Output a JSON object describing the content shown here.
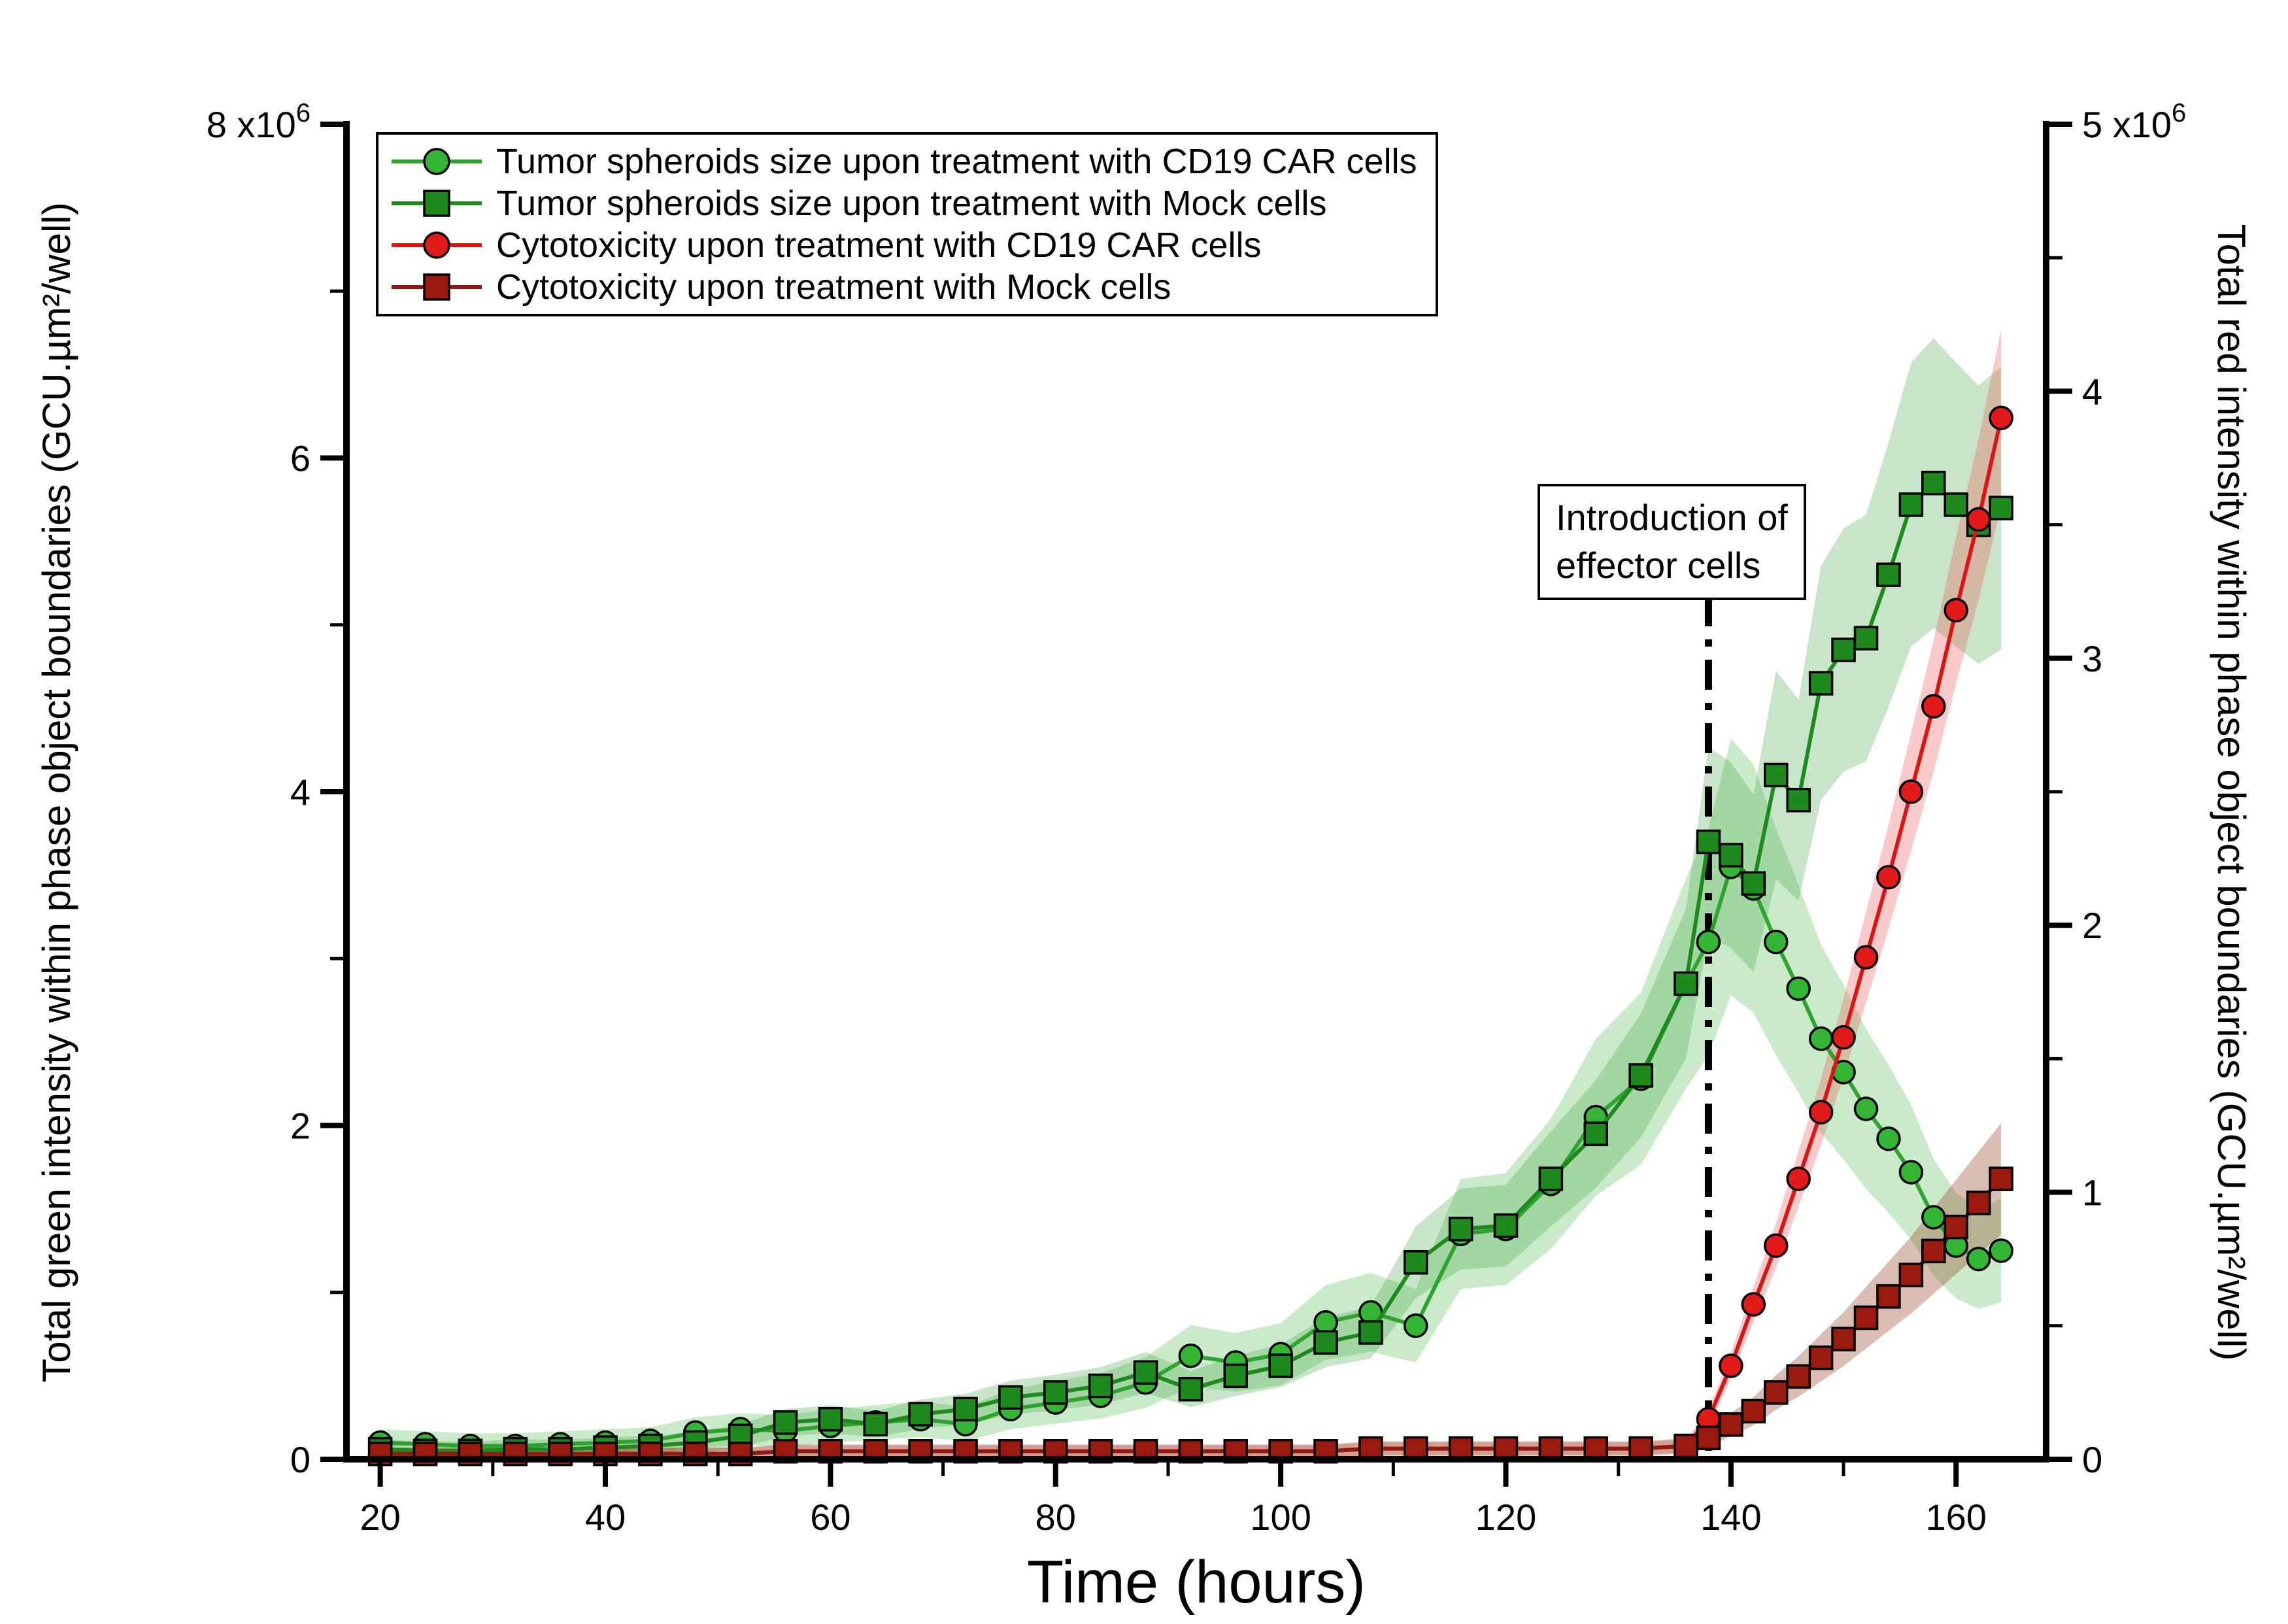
{
  "chart_data": {
    "type": "line",
    "title": "",
    "xlabel": "Time (hours)",
    "ylabel_left": "Total green intensity within phase object boundaries (GCU.µm²/well)",
    "ylabel_right": "Total red intensity within phase object boundaries (GCU.µm²/well)",
    "unit_note": "y values expressed in units of 10^6 GCU.µm²/well",
    "power_prefix": "x10",
    "power_exp": "6",
    "xlim": [
      17,
      168
    ],
    "ylim_left": [
      0,
      8
    ],
    "ylim_right": [
      0,
      5
    ],
    "x_ticks": [
      20,
      40,
      60,
      80,
      100,
      120,
      140,
      160
    ],
    "x_minor_step": 10,
    "left_ticks": [
      0,
      2,
      4,
      6,
      8
    ],
    "left_minor_ticks": [
      1,
      3,
      5,
      7
    ],
    "right_ticks": [
      0,
      1,
      2,
      3,
      4,
      5
    ],
    "right_minor_ticks": [
      0.5,
      1.5,
      2.5,
      3.5,
      4.5
    ],
    "grid": false,
    "legend_position": "top-left",
    "annotation": {
      "line1": "Introduction of",
      "line2": "effector cells",
      "x_hours": 138
    },
    "series": [
      {
        "label": "Tumor spheroids size upon treatment with CD19 CAR cells",
        "axis": "left",
        "marker": "circle",
        "color": "#35b535",
        "line_color": "#2fa32f",
        "band_color": "rgba(80,190,80,0.30)",
        "band_rel": 0.2,
        "band_abs": 0.06,
        "points": [
          [
            20,
            0.1
          ],
          [
            24,
            0.09
          ],
          [
            28,
            0.08
          ],
          [
            32,
            0.08
          ],
          [
            36,
            0.09
          ],
          [
            40,
            0.1
          ],
          [
            44,
            0.11
          ],
          [
            48,
            0.16
          ],
          [
            52,
            0.18
          ],
          [
            56,
            0.17
          ],
          [
            60,
            0.2
          ],
          [
            64,
            0.22
          ],
          [
            68,
            0.24
          ],
          [
            72,
            0.21
          ],
          [
            76,
            0.3
          ],
          [
            80,
            0.34
          ],
          [
            84,
            0.38
          ],
          [
            88,
            0.46
          ],
          [
            92,
            0.62
          ],
          [
            96,
            0.58
          ],
          [
            100,
            0.63
          ],
          [
            104,
            0.82
          ],
          [
            108,
            0.88
          ],
          [
            112,
            0.8
          ],
          [
            116,
            1.35
          ],
          [
            120,
            1.38
          ],
          [
            124,
            1.65
          ],
          [
            128,
            2.05
          ],
          [
            132,
            2.28
          ],
          [
            136,
            2.85
          ],
          [
            138,
            3.1
          ],
          [
            140,
            3.55
          ],
          [
            142,
            3.42
          ],
          [
            144,
            3.1
          ],
          [
            146,
            2.82
          ],
          [
            148,
            2.52
          ],
          [
            150,
            2.32
          ],
          [
            152,
            2.1
          ],
          [
            154,
            1.92
          ],
          [
            156,
            1.72
          ],
          [
            158,
            1.45
          ],
          [
            160,
            1.28
          ],
          [
            162,
            1.2
          ],
          [
            164,
            1.25
          ]
        ]
      },
      {
        "label": "Tumor spheroids size upon treatment with Mock cells",
        "axis": "left",
        "marker": "square",
        "color": "#1e8a1e",
        "line_color": "#1e8a1e",
        "band_color": "rgba(60,160,60,0.28)",
        "band_rel": 0.14,
        "band_abs": 0.05,
        "points": [
          [
            20,
            0.06
          ],
          [
            24,
            0.05
          ],
          [
            28,
            0.05
          ],
          [
            32,
            0.06
          ],
          [
            36,
            0.06
          ],
          [
            40,
            0.07
          ],
          [
            44,
            0.08
          ],
          [
            48,
            0.1
          ],
          [
            52,
            0.14
          ],
          [
            56,
            0.22
          ],
          [
            60,
            0.24
          ],
          [
            64,
            0.21
          ],
          [
            68,
            0.27
          ],
          [
            72,
            0.3
          ],
          [
            76,
            0.37
          ],
          [
            80,
            0.4
          ],
          [
            84,
            0.44
          ],
          [
            88,
            0.52
          ],
          [
            92,
            0.42
          ],
          [
            96,
            0.5
          ],
          [
            100,
            0.56
          ],
          [
            104,
            0.7
          ],
          [
            108,
            0.76
          ],
          [
            112,
            1.18
          ],
          [
            116,
            1.38
          ],
          [
            120,
            1.4
          ],
          [
            124,
            1.68
          ],
          [
            128,
            1.95
          ],
          [
            132,
            2.3
          ],
          [
            136,
            2.85
          ],
          [
            138,
            3.7
          ],
          [
            140,
            3.62
          ],
          [
            142,
            3.45
          ],
          [
            144,
            4.1
          ],
          [
            146,
            3.95
          ],
          [
            148,
            4.65
          ],
          [
            150,
            4.85
          ],
          [
            152,
            4.92
          ],
          [
            154,
            5.3
          ],
          [
            156,
            5.72
          ],
          [
            158,
            5.85
          ],
          [
            160,
            5.72
          ],
          [
            162,
            5.6
          ],
          [
            164,
            5.7
          ]
        ]
      },
      {
        "label": "Cytotoxicity upon treatment with CD19 CAR cells",
        "axis": "right",
        "marker": "circle",
        "color": "#e31a1a",
        "line_color": "#d81616",
        "band_color": "rgba(240,80,80,0.30)",
        "band_rel": 0.08,
        "band_abs": 0.02,
        "points": [
          [
            20,
            0.02
          ],
          [
            24,
            0.02
          ],
          [
            28,
            0.02
          ],
          [
            32,
            0.02
          ],
          [
            36,
            0.02
          ],
          [
            40,
            0.02
          ],
          [
            44,
            0.02
          ],
          [
            48,
            0.02
          ],
          [
            52,
            0.02
          ],
          [
            56,
            0.03
          ],
          [
            60,
            0.03
          ],
          [
            64,
            0.03
          ],
          [
            68,
            0.03
          ],
          [
            72,
            0.03
          ],
          [
            76,
            0.03
          ],
          [
            80,
            0.03
          ],
          [
            84,
            0.03
          ],
          [
            88,
            0.03
          ],
          [
            92,
            0.03
          ],
          [
            96,
            0.03
          ],
          [
            100,
            0.03
          ],
          [
            104,
            0.03
          ],
          [
            108,
            0.04
          ],
          [
            112,
            0.04
          ],
          [
            116,
            0.04
          ],
          [
            120,
            0.04
          ],
          [
            124,
            0.04
          ],
          [
            128,
            0.04
          ],
          [
            132,
            0.04
          ],
          [
            136,
            0.05
          ],
          [
            138,
            0.15
          ],
          [
            140,
            0.35
          ],
          [
            142,
            0.58
          ],
          [
            144,
            0.8
          ],
          [
            146,
            1.05
          ],
          [
            148,
            1.3
          ],
          [
            150,
            1.58
          ],
          [
            152,
            1.88
          ],
          [
            154,
            2.18
          ],
          [
            156,
            2.5
          ],
          [
            158,
            2.82
          ],
          [
            160,
            3.18
          ],
          [
            162,
            3.52
          ],
          [
            164,
            3.9
          ]
        ]
      },
      {
        "label": "Cytotoxicity upon treatment with Mock cells",
        "axis": "right",
        "marker": "square",
        "color": "#9b1a10",
        "line_color": "#8f1a0f",
        "band_color": "rgba(150,70,40,0.35)",
        "band_rel": 0.18,
        "band_abs": 0.02,
        "points": [
          [
            20,
            0.02
          ],
          [
            24,
            0.02
          ],
          [
            28,
            0.02
          ],
          [
            32,
            0.02
          ],
          [
            36,
            0.02
          ],
          [
            40,
            0.02
          ],
          [
            44,
            0.02
          ],
          [
            48,
            0.02
          ],
          [
            52,
            0.02
          ],
          [
            56,
            0.03
          ],
          [
            60,
            0.03
          ],
          [
            64,
            0.03
          ],
          [
            68,
            0.03
          ],
          [
            72,
            0.03
          ],
          [
            76,
            0.03
          ],
          [
            80,
            0.03
          ],
          [
            84,
            0.03
          ],
          [
            88,
            0.03
          ],
          [
            92,
            0.03
          ],
          [
            96,
            0.03
          ],
          [
            100,
            0.03
          ],
          [
            104,
            0.03
          ],
          [
            108,
            0.04
          ],
          [
            112,
            0.04
          ],
          [
            116,
            0.04
          ],
          [
            120,
            0.04
          ],
          [
            124,
            0.04
          ],
          [
            128,
            0.04
          ],
          [
            132,
            0.04
          ],
          [
            136,
            0.05
          ],
          [
            138,
            0.08
          ],
          [
            140,
            0.13
          ],
          [
            142,
            0.18
          ],
          [
            144,
            0.25
          ],
          [
            146,
            0.31
          ],
          [
            148,
            0.38
          ],
          [
            150,
            0.45
          ],
          [
            152,
            0.53
          ],
          [
            154,
            0.61
          ],
          [
            156,
            0.69
          ],
          [
            158,
            0.78
          ],
          [
            160,
            0.87
          ],
          [
            162,
            0.96
          ],
          [
            164,
            1.05
          ]
        ]
      }
    ]
  }
}
